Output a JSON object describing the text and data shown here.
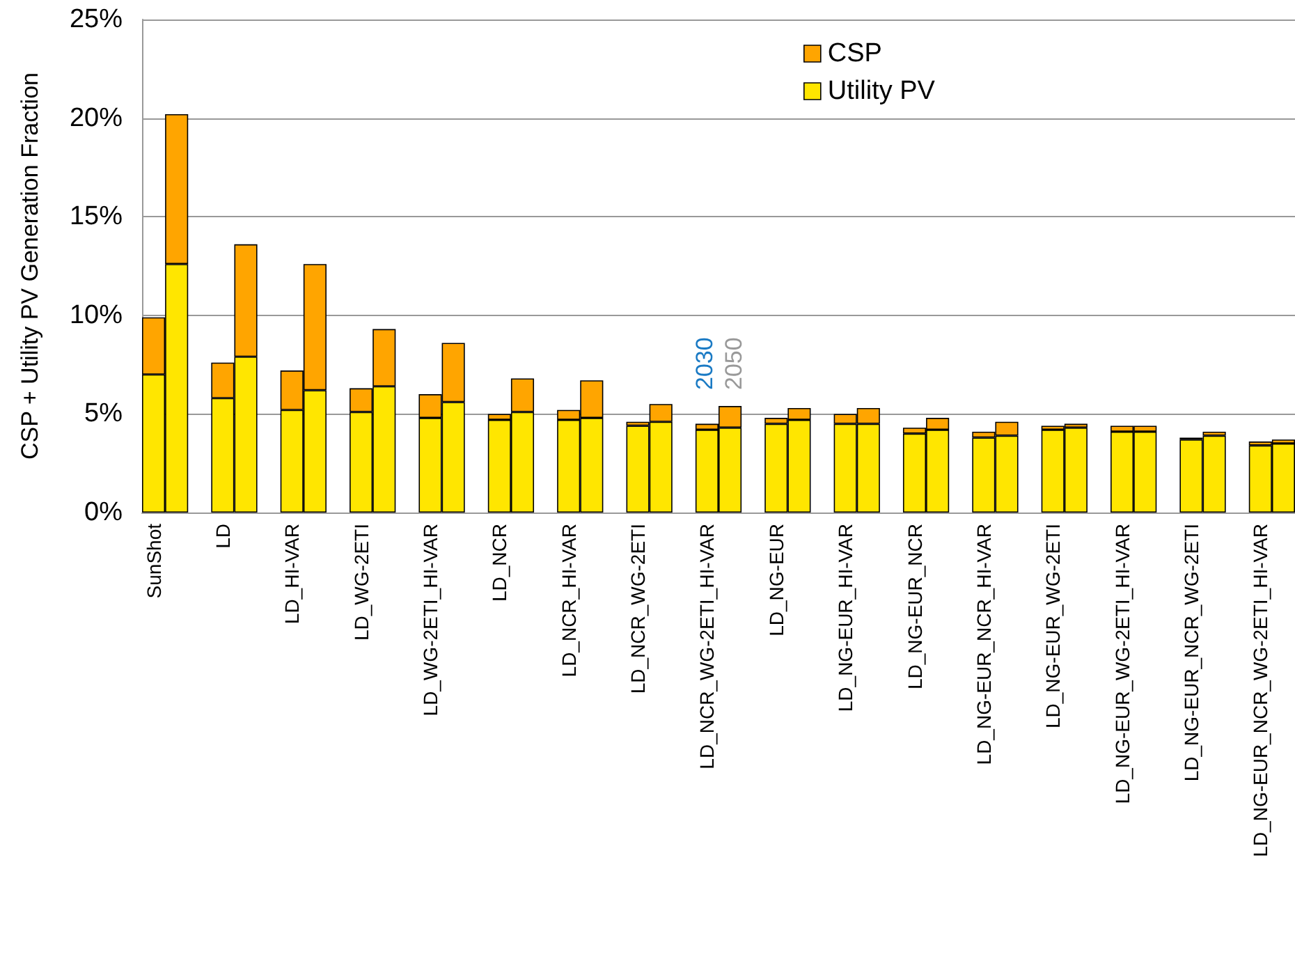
{
  "chart_data": {
    "type": "bar",
    "stacked": true,
    "ylabel": "CSP + Utility PV Generation Fraction",
    "categories": [
      "SunShot",
      null,
      null,
      "LD",
      null,
      null,
      "LD_HI-VAR",
      null,
      null,
      "LD_WG-2ETI",
      null,
      null,
      "LD_WG-2ETI_HI-VAR",
      null,
      null,
      "LD_NCR",
      null,
      null,
      "LD_NCR_HI-VAR",
      null,
      null,
      "LD_NCR_WG-2ETI",
      null,
      null,
      "LD_NCR_WG-2ETI_HI-VAR",
      null,
      null,
      "LD_NG-EUR",
      null,
      null,
      "LD_NG-EUR_HI-VAR",
      null,
      null,
      "LD_NG-EUR_NCR",
      null,
      null,
      "LD_NG-EUR_NCR_HI-VAR",
      null,
      null,
      "LD_NG-EUR_WG-2ETI",
      null,
      null,
      "LD_NG-EUR_WG-2ETI_HI-VAR",
      null,
      null,
      "LD_NG-EUR_NCR_WG-2ETI",
      null,
      null,
      "LD_NG-EUR_NCR_WG-2ETI_HI-VAR",
      null
    ],
    "series": [
      {
        "name": "Utility PV",
        "color": "#ffe600",
        "values": [
          7.0,
          12.6,
          null,
          5.8,
          7.9,
          null,
          5.2,
          6.2,
          null,
          5.1,
          6.4,
          null,
          4.8,
          5.6,
          null,
          4.7,
          5.1,
          null,
          4.7,
          4.8,
          null,
          4.4,
          4.6,
          null,
          4.2,
          4.3,
          null,
          4.5,
          4.7,
          null,
          4.5,
          4.5,
          null,
          4.0,
          4.2,
          null,
          3.8,
          3.9,
          null,
          4.2,
          4.3,
          null,
          4.1,
          4.1,
          null,
          3.7,
          3.9,
          null,
          3.4,
          3.5
        ]
      },
      {
        "name": "CSP",
        "color": "#ffa500",
        "values": [
          2.9,
          7.6,
          null,
          1.8,
          5.7,
          null,
          2.0,
          6.4,
          null,
          1.2,
          2.9,
          null,
          1.2,
          3.0,
          null,
          0.3,
          1.7,
          null,
          0.5,
          1.9,
          null,
          0.2,
          0.9,
          null,
          0.3,
          1.1,
          null,
          0.3,
          0.6,
          null,
          0.5,
          0.8,
          null,
          0.3,
          0.6,
          null,
          0.3,
          0.7,
          null,
          0.2,
          0.2,
          null,
          0.3,
          0.3,
          null,
          0.1,
          0.2,
          null,
          0.2,
          0.2
        ]
      }
    ],
    "ylim": [
      0,
      25
    ],
    "yticks": [
      {
        "value": 0,
        "label": "0%"
      },
      {
        "value": 5,
        "label": "5%"
      },
      {
        "value": 10,
        "label": "10%"
      },
      {
        "value": 15,
        "label": "15%"
      },
      {
        "value": 20,
        "label": "20%"
      },
      {
        "value": 25,
        "label": "25%"
      }
    ],
    "grid": "y",
    "legend": "top",
    "annotations": [
      "2030",
      "2050"
    ]
  }
}
